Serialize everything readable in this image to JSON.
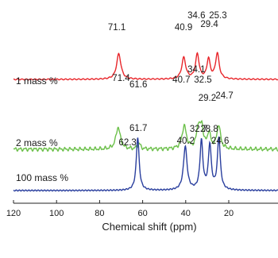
{
  "chart_data": {
    "type": "line",
    "title": "",
    "xlabel": "Chemical shift (ppm)",
    "ylabel": "",
    "xlim": [
      120,
      10
    ],
    "x_reversed": true,
    "x_ticks": [
      120,
      100,
      80,
      60,
      40,
      20
    ],
    "grid": false,
    "series": [
      {
        "name": "1 mass %",
        "color": "#e8252a",
        "baseline": 0.18,
        "peaks": [
          {
            "x": 71.1,
            "height": 0.62,
            "width": 1.2,
            "label": "71.1"
          },
          {
            "x": 61.6,
            "height": 0.0,
            "width": 1.0,
            "label": "61.6"
          },
          {
            "x": 40.9,
            "height": 0.52,
            "width": 1.1,
            "label": "40.9"
          },
          {
            "x": 34.6,
            "height": 0.6,
            "width": 1.0,
            "label": "34.6"
          },
          {
            "x": 29.4,
            "height": 0.48,
            "width": 0.9,
            "label": "29.4"
          },
          {
            "x": 25.3,
            "height": 0.62,
            "width": 1.0,
            "label": "25.3"
          }
        ]
      },
      {
        "name": "2 mass %",
        "color": "#6cc04a",
        "baseline": 0.1,
        "peaks": [
          {
            "x": 71.4,
            "height": 0.56,
            "width": 1.2,
            "label": "71.4"
          },
          {
            "x": 61.7,
            "height": 0.14,
            "width": 0.8,
            "label": "61.7"
          },
          {
            "x": 40.7,
            "height": 0.58,
            "width": 1.2,
            "label": "40.7"
          },
          {
            "x": 34.1,
            "height": 0.56,
            "width": 1.0,
            "label": "34.1"
          },
          {
            "x": 32.5,
            "height": 0.5,
            "width": 0.8,
            "label": "32.5"
          },
          {
            "x": 29.2,
            "height": 0.4,
            "width": 0.9,
            "label": "29.2"
          },
          {
            "x": 24.7,
            "height": 0.6,
            "width": 1.0,
            "label": "24.7"
          }
        ]
      },
      {
        "name": "100 mass %",
        "color": "#2a3f9e",
        "baseline": 0.0,
        "peaks": [
          {
            "x": 62.3,
            "height": 1.0,
            "width": 0.8,
            "label": "62.3"
          },
          {
            "x": 40.2,
            "height": 0.82,
            "width": 1.0,
            "label": "40.2"
          },
          {
            "x": 32.7,
            "height": 0.92,
            "width": 0.8,
            "label": "32.7"
          },
          {
            "x": 28.8,
            "height": 0.84,
            "width": 0.8,
            "label": "28.8"
          },
          {
            "x": 24.6,
            "height": 0.98,
            "width": 0.8,
            "label": "24.6"
          }
        ]
      }
    ]
  }
}
